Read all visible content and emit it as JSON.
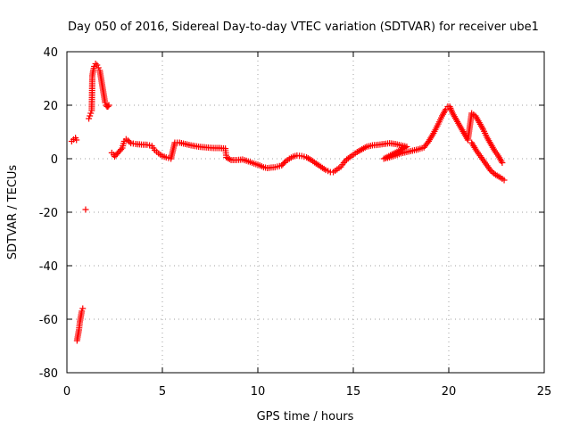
{
  "chart_data": {
    "type": "scatter",
    "title": "Day 050 of 2016, Sidereal Day-to-day VTEC variation (SDTVAR) for receiver ube1",
    "xlabel": "GPS time / hours",
    "ylabel": "SDTVAR / TECUs",
    "xlim": [
      0,
      25
    ],
    "ylim": [
      -80,
      40
    ],
    "xticks": [
      0,
      5,
      10,
      15,
      20,
      25
    ],
    "yticks": [
      -80,
      -60,
      -40,
      -20,
      0,
      20,
      40
    ],
    "xtick_labels": [
      "0",
      "5",
      "10",
      "15",
      "20",
      "25"
    ],
    "ytick_labels": [
      "-80",
      "-60",
      "-40",
      "-20",
      "0",
      "20",
      "40"
    ],
    "grid": true,
    "marker": "+",
    "color": "#ff0000",
    "series": [
      {
        "name": "SDTVAR",
        "points": [
          [
            0.25,
            6.5
          ],
          [
            0.35,
            7.2
          ],
          [
            0.45,
            7.8
          ],
          [
            0.5,
            7.0
          ],
          [
            0.53,
            -68
          ],
          [
            0.58,
            -66
          ],
          [
            0.63,
            -64
          ],
          [
            0.68,
            -61
          ],
          [
            0.73,
            -59
          ],
          [
            0.78,
            -57
          ],
          [
            0.83,
            -56
          ],
          [
            0.98,
            -19
          ],
          [
            1.15,
            15
          ],
          [
            1.2,
            16
          ],
          [
            1.25,
            17
          ],
          [
            1.3,
            18
          ],
          [
            1.33,
            31
          ],
          [
            1.38,
            33
          ],
          [
            1.43,
            34.5
          ],
          [
            1.5,
            35.5
          ],
          [
            1.58,
            35
          ],
          [
            1.65,
            34
          ],
          [
            1.72,
            33
          ],
          [
            2.0,
            21
          ],
          [
            2.05,
            20
          ],
          [
            2.1,
            19.5
          ],
          [
            2.15,
            19.5
          ],
          [
            2.2,
            20
          ],
          [
            2.35,
            2.2
          ],
          [
            2.45,
            1.5
          ],
          [
            2.5,
            0.8
          ],
          [
            2.9,
            4
          ],
          [
            3.0,
            6.5
          ],
          [
            3.1,
            7.3
          ],
          [
            3.2,
            6.8
          ],
          [
            3.35,
            5.8
          ],
          [
            3.6,
            5.5
          ],
          [
            3.9,
            5.3
          ],
          [
            4.2,
            5.2
          ],
          [
            4.45,
            4.8
          ],
          [
            4.6,
            3.2
          ],
          [
            4.8,
            2
          ],
          [
            5.0,
            1
          ],
          [
            5.2,
            0.5
          ],
          [
            5.45,
            0
          ],
          [
            5.65,
            6
          ],
          [
            5.9,
            6
          ],
          [
            6.2,
            5.5
          ],
          [
            6.5,
            5
          ],
          [
            6.9,
            4.5
          ],
          [
            7.3,
            4.2
          ],
          [
            7.7,
            4
          ],
          [
            8.0,
            4
          ],
          [
            8.3,
            3.8
          ],
          [
            8.35,
            0.5
          ],
          [
            8.6,
            -0.5
          ],
          [
            8.9,
            -0.5
          ],
          [
            9.2,
            -0.3
          ],
          [
            9.5,
            -1
          ],
          [
            9.8,
            -1.8
          ],
          [
            10.1,
            -2.5
          ],
          [
            10.3,
            -3.2
          ],
          [
            10.5,
            -3.5
          ],
          [
            10.7,
            -3.3
          ],
          [
            10.9,
            -3.2
          ],
          [
            11.25,
            -2.5
          ],
          [
            11.45,
            -1
          ],
          [
            11.65,
            0
          ],
          [
            11.85,
            0.8
          ],
          [
            12.05,
            1.2
          ],
          [
            12.3,
            1
          ],
          [
            12.55,
            0.5
          ],
          [
            12.8,
            -0.5
          ],
          [
            13.05,
            -1.8
          ],
          [
            13.3,
            -3
          ],
          [
            13.55,
            -4.2
          ],
          [
            13.8,
            -5
          ],
          [
            13.95,
            -5
          ],
          [
            14.15,
            -4
          ],
          [
            14.35,
            -3
          ],
          [
            14.5,
            -1.5
          ],
          [
            14.65,
            -0.3
          ],
          [
            14.9,
            1
          ],
          [
            15.2,
            2.5
          ],
          [
            15.45,
            3.5
          ],
          [
            15.7,
            4.5
          ],
          [
            16.0,
            5
          ],
          [
            16.3,
            5.2
          ],
          [
            16.6,
            5.5
          ],
          [
            16.9,
            5.8
          ],
          [
            17.2,
            5.5
          ],
          [
            17.5,
            5
          ],
          [
            17.8,
            4.5
          ],
          [
            16.6,
            0
          ],
          [
            16.9,
            0.5
          ],
          [
            17.2,
            1.2
          ],
          [
            17.5,
            2
          ],
          [
            17.8,
            2.5
          ],
          [
            18.1,
            3
          ],
          [
            18.4,
            3.5
          ],
          [
            18.7,
            4.2
          ],
          [
            18.95,
            6.5
          ],
          [
            19.2,
            9.5
          ],
          [
            19.45,
            13
          ],
          [
            19.65,
            16
          ],
          [
            19.85,
            18.5
          ],
          [
            19.95,
            19.5
          ],
          [
            20.05,
            19.5
          ],
          [
            20.2,
            17
          ],
          [
            20.4,
            14.5
          ],
          [
            20.6,
            12
          ],
          [
            20.8,
            9.5
          ],
          [
            21.0,
            7
          ],
          [
            21.2,
            17
          ],
          [
            21.4,
            16
          ],
          [
            21.6,
            13.5
          ],
          [
            21.8,
            11
          ],
          [
            22.0,
            8
          ],
          [
            22.2,
            5.5
          ],
          [
            22.4,
            3
          ],
          [
            22.6,
            1
          ],
          [
            22.8,
            -1.5
          ],
          [
            21.2,
            6
          ],
          [
            21.45,
            3
          ],
          [
            21.7,
            0.5
          ],
          [
            21.95,
            -2
          ],
          [
            22.2,
            -4.5
          ],
          [
            22.45,
            -6
          ],
          [
            22.7,
            -7
          ],
          [
            22.9,
            -8
          ]
        ]
      }
    ]
  }
}
